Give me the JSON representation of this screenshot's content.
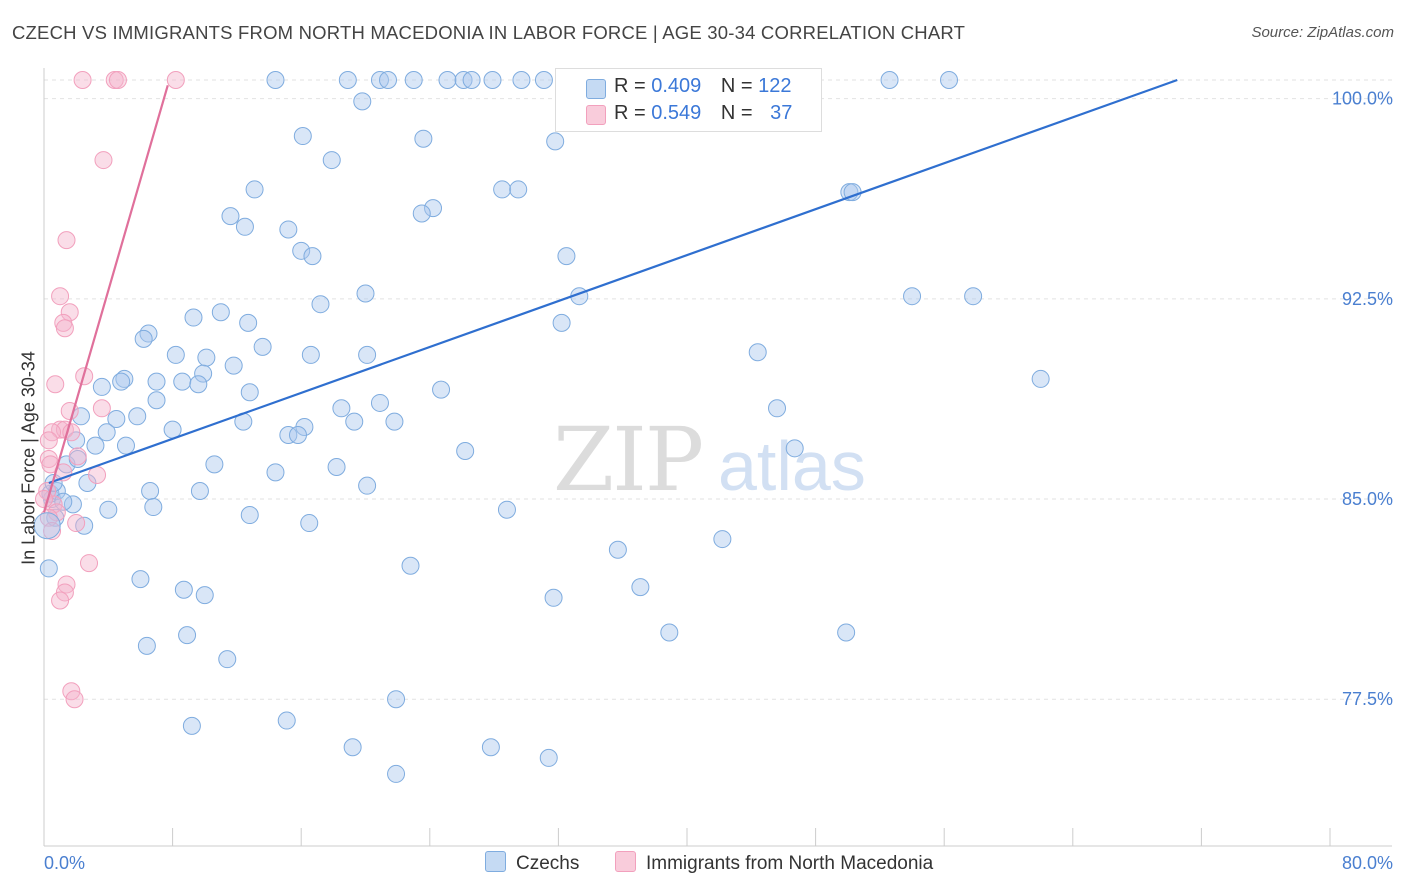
{
  "chart_data": {
    "type": "scatter",
    "title": "CZECH VS IMMIGRANTS FROM NORTH MACEDONIA IN LABOR FORCE | AGE 30-34 CORRELATION CHART",
    "source": "Source: ZipAtlas.com",
    "xlabel": "",
    "ylabel": "In Labor Force | Age 30-34",
    "xlim": [
      0,
      80
    ],
    "ylim": [
      72,
      100.7
    ],
    "x_tick_labels": [
      "0.0%",
      "80.0%"
    ],
    "y_ticks": [
      77.5,
      85.0,
      92.5,
      100.0
    ],
    "y_tick_labels": [
      "77.5%",
      "85.0%",
      "92.5%",
      "100.0%"
    ],
    "grid": "horizontal dashed",
    "watermark": "ZIPatlas",
    "legend_stats": [
      {
        "r_label": "R =",
        "r_value": "0.409",
        "n_label": "N =",
        "n_value": "122"
      },
      {
        "r_label": "R =",
        "r_value": "0.549",
        "n_label": "N =",
        "n_value": "37"
      }
    ],
    "series": [
      {
        "name": "Czechs",
        "color": "#7facdf",
        "trend": {
          "x": [
            0.3,
            70.5
          ],
          "y": [
            85.6,
            100.7
          ]
        },
        "points": [
          [
            14.4,
            100.7
          ],
          [
            18.9,
            100.7
          ],
          [
            20.9,
            100.7
          ],
          [
            21.4,
            100.7
          ],
          [
            23.0,
            100.7
          ],
          [
            25.1,
            100.7
          ],
          [
            26.1,
            100.7
          ],
          [
            26.6,
            100.7
          ],
          [
            27.9,
            100.7
          ],
          [
            29.7,
            100.7
          ],
          [
            31.1,
            100.7
          ],
          [
            33.4,
            100.7
          ],
          [
            41.8,
            100.7
          ],
          [
            46.9,
            100.7
          ],
          [
            52.6,
            100.7
          ],
          [
            56.3,
            100.7
          ],
          [
            19.8,
            99.9
          ],
          [
            38.6,
            99.5
          ],
          [
            16.1,
            98.6
          ],
          [
            23.6,
            98.5
          ],
          [
            31.8,
            98.4
          ],
          [
            17.9,
            97.7
          ],
          [
            28.5,
            96.6
          ],
          [
            29.5,
            96.6
          ],
          [
            50.1,
            96.5
          ],
          [
            50.3,
            96.5
          ],
          [
            13.1,
            96.6
          ],
          [
            24.2,
            95.9
          ],
          [
            23.5,
            95.7
          ],
          [
            11.6,
            95.6
          ],
          [
            12.5,
            95.2
          ],
          [
            15.2,
            95.1
          ],
          [
            32.5,
            94.1
          ],
          [
            16.0,
            94.3
          ],
          [
            16.7,
            94.1
          ],
          [
            20.0,
            92.7
          ],
          [
            33.3,
            92.6
          ],
          [
            54.0,
            92.6
          ],
          [
            57.8,
            92.6
          ],
          [
            17.2,
            92.3
          ],
          [
            11.0,
            92.0
          ],
          [
            9.3,
            91.8
          ],
          [
            12.7,
            91.6
          ],
          [
            32.2,
            91.6
          ],
          [
            6.5,
            91.2
          ],
          [
            6.2,
            91.0
          ],
          [
            13.6,
            90.7
          ],
          [
            16.6,
            90.4
          ],
          [
            8.2,
            90.4
          ],
          [
            10.1,
            90.3
          ],
          [
            20.1,
            90.4
          ],
          [
            44.4,
            90.5
          ],
          [
            11.8,
            90.0
          ],
          [
            9.9,
            89.7
          ],
          [
            5.0,
            89.5
          ],
          [
            4.8,
            89.4
          ],
          [
            7.0,
            89.4
          ],
          [
            8.6,
            89.4
          ],
          [
            9.6,
            89.3
          ],
          [
            62.0,
            89.5
          ],
          [
            3.6,
            89.2
          ],
          [
            12.8,
            89.0
          ],
          [
            7.0,
            88.7
          ],
          [
            24.7,
            89.1
          ],
          [
            20.9,
            88.6
          ],
          [
            18.5,
            88.4
          ],
          [
            4.5,
            88.0
          ],
          [
            2.3,
            88.1
          ],
          [
            12.4,
            87.9
          ],
          [
            45.6,
            88.4
          ],
          [
            21.8,
            87.9
          ],
          [
            19.3,
            87.9
          ],
          [
            16.2,
            87.7
          ],
          [
            8.0,
            87.6
          ],
          [
            15.2,
            87.4
          ],
          [
            15.8,
            87.4
          ],
          [
            2.0,
            87.2
          ],
          [
            3.2,
            87.0
          ],
          [
            26.2,
            86.8
          ],
          [
            46.7,
            86.9
          ],
          [
            10.6,
            86.3
          ],
          [
            6.6,
            85.3
          ],
          [
            20.1,
            85.5
          ],
          [
            6.8,
            84.7
          ],
          [
            28.8,
            84.6
          ],
          [
            1.8,
            84.8
          ],
          [
            0.5,
            85.0
          ],
          [
            4.0,
            84.6
          ],
          [
            12.8,
            84.4
          ],
          [
            16.5,
            84.1
          ],
          [
            2.5,
            84.0
          ],
          [
            0.7,
            84.3
          ],
          [
            35.7,
            83.1
          ],
          [
            42.2,
            83.5
          ],
          [
            22.8,
            82.5
          ],
          [
            6.0,
            82.0
          ],
          [
            8.7,
            81.6
          ],
          [
            10.0,
            81.4
          ],
          [
            37.1,
            81.7
          ],
          [
            31.7,
            81.3
          ],
          [
            38.9,
            80.0
          ],
          [
            49.9,
            80.0
          ],
          [
            8.9,
            79.9
          ],
          [
            0.3,
            82.4
          ],
          [
            11.4,
            79.0
          ],
          [
            6.4,
            79.5
          ],
          [
            21.9,
            77.5
          ],
          [
            9.2,
            76.5
          ],
          [
            15.1,
            76.7
          ],
          [
            19.2,
            75.7
          ],
          [
            27.8,
            75.7
          ],
          [
            31.4,
            75.3
          ],
          [
            21.9,
            74.7
          ],
          [
            0.4,
            85.2
          ],
          [
            0.8,
            85.3
          ],
          [
            1.2,
            84.9
          ],
          [
            0.6,
            85.6
          ],
          [
            3.9,
            87.5
          ],
          [
            2.7,
            85.6
          ],
          [
            5.8,
            88.1
          ],
          [
            1.4,
            86.3
          ],
          [
            2.1,
            86.5
          ],
          [
            5.1,
            87.0
          ],
          [
            14.4,
            86.0
          ],
          [
            9.7,
            85.3
          ],
          [
            18.2,
            86.2
          ]
        ]
      },
      {
        "name": "Immigrants from North Macedonia",
        "color": "#f2a0bd",
        "trend": {
          "x": [
            0.0,
            7.7
          ],
          "y": [
            84.5,
            100.5
          ]
        },
        "points": [
          [
            2.4,
            100.7
          ],
          [
            4.4,
            100.7
          ],
          [
            4.6,
            100.7
          ],
          [
            8.2,
            100.7
          ],
          [
            3.7,
            97.7
          ],
          [
            1.4,
            94.7
          ],
          [
            1.0,
            92.6
          ],
          [
            1.6,
            92.0
          ],
          [
            1.2,
            91.6
          ],
          [
            1.3,
            91.4
          ],
          [
            2.5,
            89.6
          ],
          [
            0.7,
            89.3
          ],
          [
            1.6,
            88.3
          ],
          [
            3.6,
            88.4
          ],
          [
            1.0,
            87.6
          ],
          [
            1.3,
            87.6
          ],
          [
            0.5,
            87.5
          ],
          [
            0.3,
            87.2
          ],
          [
            1.7,
            87.5
          ],
          [
            2.1,
            86.6
          ],
          [
            0.3,
            86.5
          ],
          [
            0.4,
            86.3
          ],
          [
            1.2,
            86.0
          ],
          [
            0.2,
            85.3
          ],
          [
            3.3,
            85.9
          ],
          [
            0.6,
            84.8
          ],
          [
            0.8,
            84.5
          ],
          [
            0.3,
            84.3
          ],
          [
            2.0,
            84.1
          ],
          [
            0.5,
            83.8
          ],
          [
            2.8,
            82.6
          ],
          [
            1.4,
            81.8
          ],
          [
            1.3,
            81.5
          ],
          [
            1.0,
            81.2
          ],
          [
            1.7,
            77.8
          ],
          [
            1.9,
            77.5
          ],
          [
            0.0,
            85.0
          ]
        ]
      }
    ]
  }
}
